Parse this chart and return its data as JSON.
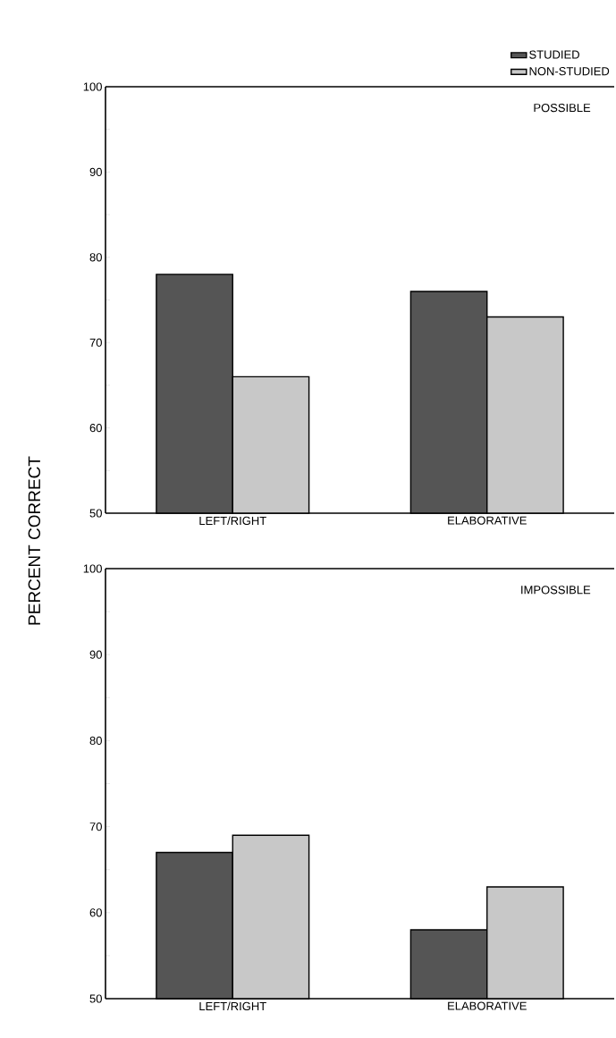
{
  "chart_data": [
    {
      "type": "bar",
      "title": "POSSIBLE",
      "ylabel": "PERCENT CORRECT",
      "categories": [
        "LEFT/RIGHT",
        "ELABORATIVE"
      ],
      "series": [
        {
          "name": "STUDIED",
          "color": "#555555",
          "values": [
            78,
            76
          ]
        },
        {
          "name": "NON-STUDIED",
          "color": "#c8c8c8",
          "values": [
            66,
            73
          ]
        }
      ],
      "ylim": [
        50,
        100
      ],
      "yticks": [
        50,
        {
          "value": 55,
          "label": null
        },
        60,
        {
          "value": 65,
          "label": null
        },
        70,
        {
          "value": 75,
          "label": null
        },
        80,
        {
          "value": 85,
          "label": null
        },
        90,
        {
          "value": 95,
          "label": null
        },
        100
      ],
      "legend": "top right"
    },
    {
      "type": "bar",
      "title": "IMPOSSIBLE",
      "categories": [
        "LEFT/RIGHT",
        "ELABORATIVE"
      ],
      "series": [
        {
          "color": "#555555",
          "values": [
            67,
            58
          ]
        },
        {
          "color": "#c8c8c8",
          "values": [
            69,
            63
          ]
        }
      ],
      "ylim": [
        50,
        100
      ],
      "yticks": [
        50,
        {
          "value": 55,
          "label": null
        },
        60,
        {
          "value": 65,
          "label": null
        },
        70,
        {
          "value": 75,
          "label": null
        },
        80,
        {
          "value": 85,
          "label": null
        },
        90,
        {
          "value": 95,
          "label": null
        },
        100
      ]
    }
  ]
}
